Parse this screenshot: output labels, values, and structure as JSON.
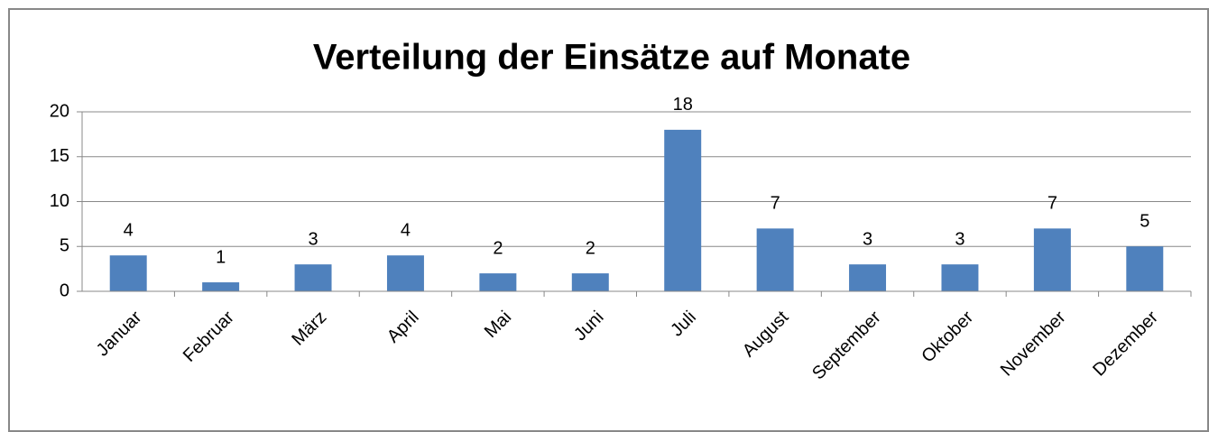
{
  "chart_data": {
    "type": "bar",
    "title": "Verteilung der Einsätze auf Monate",
    "categories": [
      "Januar",
      "Februar",
      "März",
      "April",
      "Mai",
      "Juni",
      "Juli",
      "August",
      "September",
      "Oktober",
      "November",
      "Dezember"
    ],
    "values": [
      4,
      1,
      3,
      4,
      2,
      2,
      18,
      7,
      3,
      3,
      7,
      5
    ],
    "color": "#4f81bd",
    "ylim": [
      0,
      20
    ],
    "yticks": [
      0,
      5,
      10,
      15,
      20
    ],
    "grid": true
  }
}
